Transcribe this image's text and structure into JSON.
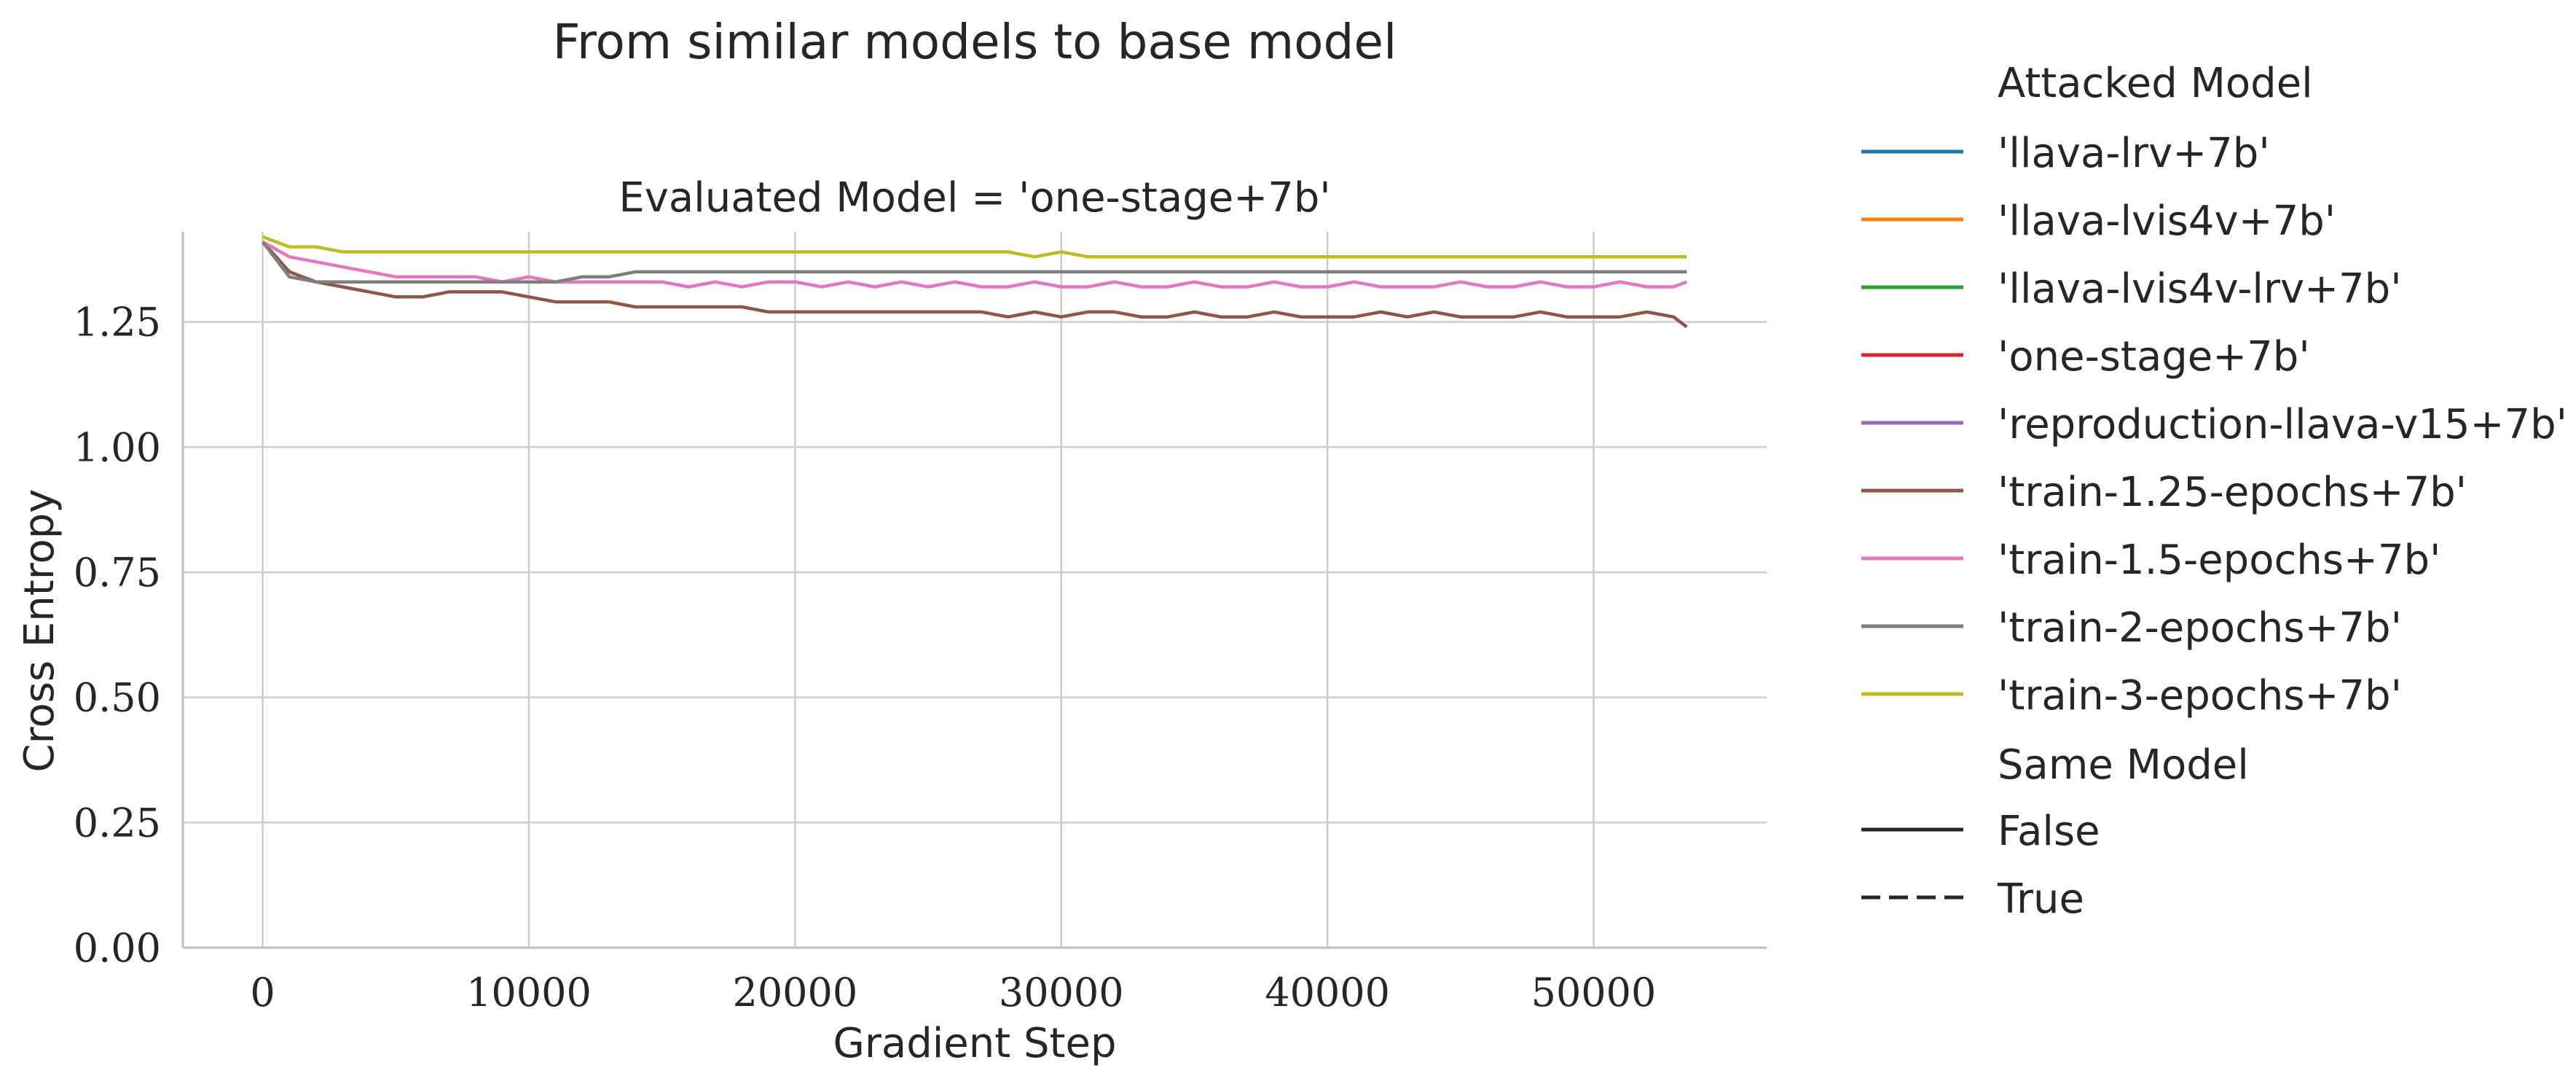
{
  "figure": {
    "suptitle": "From similar models to base model"
  },
  "chart_data": {
    "type": "line",
    "title": "Evaluated Model = 'one-stage+7b'",
    "xlabel": "Gradient Step",
    "ylabel": "Cross Entropy",
    "xlim": [
      -3000,
      56500
    ],
    "ylim": [
      0,
      1.43
    ],
    "xticks": [
      0,
      10000,
      20000,
      30000,
      40000,
      50000
    ],
    "yticks": [
      0.0,
      0.25,
      0.5,
      0.75,
      1.0,
      1.25
    ],
    "xtick_labels": [
      "0",
      "10000",
      "20000",
      "30000",
      "40000",
      "50000"
    ],
    "ytick_labels": [
      "0.00",
      "0.25",
      "0.50",
      "0.75",
      "1.00",
      "1.25"
    ],
    "grid": true,
    "legend": {
      "placement": "right-outside",
      "hue_title": "Attacked Model",
      "style_title": "Same Model",
      "style_entries": [
        {
          "label": "False",
          "dash": "solid"
        },
        {
          "label": "True",
          "dash": "dashed"
        }
      ]
    },
    "series": [
      {
        "name": "'llava-lrv+7b'",
        "color": "#1f77b4",
        "x": [],
        "y": []
      },
      {
        "name": "'llava-lvis4v+7b'",
        "color": "#ff7f0e",
        "x": [],
        "y": []
      },
      {
        "name": "'llava-lvis4v-lrv+7b'",
        "color": "#2ca02c",
        "x": [],
        "y": []
      },
      {
        "name": "'one-stage+7b'",
        "color": "#d62728",
        "x": [],
        "y": []
      },
      {
        "name": "'reproduction-llava-v15+7b'",
        "color": "#9467bd",
        "x": [],
        "y": []
      },
      {
        "name": "'train-1.25-epochs+7b'",
        "color": "#8c564b",
        "x": [
          0,
          1000,
          2000,
          3000,
          4000,
          5000,
          6000,
          7000,
          8000,
          9000,
          10000,
          11000,
          12000,
          13000,
          14000,
          15000,
          16000,
          17000,
          18000,
          19000,
          20000,
          21000,
          22000,
          23000,
          24000,
          25000,
          26000,
          27000,
          28000,
          29000,
          30000,
          31000,
          32000,
          33000,
          34000,
          35000,
          36000,
          37000,
          38000,
          39000,
          40000,
          41000,
          42000,
          43000,
          44000,
          45000,
          46000,
          47000,
          48000,
          49000,
          50000,
          51000,
          52000,
          53000,
          53500
        ],
        "y": [
          1.41,
          1.35,
          1.33,
          1.32,
          1.31,
          1.3,
          1.3,
          1.31,
          1.31,
          1.31,
          1.3,
          1.29,
          1.29,
          1.29,
          1.28,
          1.28,
          1.28,
          1.28,
          1.28,
          1.27,
          1.27,
          1.27,
          1.27,
          1.27,
          1.27,
          1.27,
          1.27,
          1.27,
          1.26,
          1.27,
          1.26,
          1.27,
          1.27,
          1.26,
          1.26,
          1.27,
          1.26,
          1.26,
          1.27,
          1.26,
          1.26,
          1.26,
          1.27,
          1.26,
          1.27,
          1.26,
          1.26,
          1.26,
          1.27,
          1.26,
          1.26,
          1.26,
          1.27,
          1.26,
          1.24
        ]
      },
      {
        "name": "'train-1.5-epochs+7b'",
        "color": "#e377c2",
        "x": [
          0,
          1000,
          2000,
          3000,
          4000,
          5000,
          6000,
          7000,
          8000,
          9000,
          10000,
          11000,
          12000,
          13000,
          14000,
          15000,
          16000,
          17000,
          18000,
          19000,
          20000,
          21000,
          22000,
          23000,
          24000,
          25000,
          26000,
          27000,
          28000,
          29000,
          30000,
          31000,
          32000,
          33000,
          34000,
          35000,
          36000,
          37000,
          38000,
          39000,
          40000,
          41000,
          42000,
          43000,
          44000,
          45000,
          46000,
          47000,
          48000,
          49000,
          50000,
          51000,
          52000,
          53000,
          53500
        ],
        "y": [
          1.41,
          1.38,
          1.37,
          1.36,
          1.35,
          1.34,
          1.34,
          1.34,
          1.34,
          1.33,
          1.34,
          1.33,
          1.33,
          1.33,
          1.33,
          1.33,
          1.32,
          1.33,
          1.32,
          1.33,
          1.33,
          1.32,
          1.33,
          1.32,
          1.33,
          1.32,
          1.33,
          1.32,
          1.32,
          1.33,
          1.32,
          1.32,
          1.33,
          1.32,
          1.32,
          1.33,
          1.32,
          1.32,
          1.33,
          1.32,
          1.32,
          1.33,
          1.32,
          1.32,
          1.32,
          1.33,
          1.32,
          1.32,
          1.33,
          1.32,
          1.32,
          1.33,
          1.32,
          1.32,
          1.33
        ]
      },
      {
        "name": "'train-2-epochs+7b'",
        "color": "#7f7f7f",
        "x": [
          0,
          1000,
          2000,
          3000,
          4000,
          5000,
          6000,
          7000,
          8000,
          9000,
          10000,
          11000,
          12000,
          13000,
          14000,
          15000,
          16000,
          17000,
          18000,
          19000,
          20000,
          21000,
          22000,
          23000,
          24000,
          25000,
          26000,
          27000,
          28000,
          29000,
          30000,
          31000,
          32000,
          33000,
          34000,
          35000,
          36000,
          37000,
          38000,
          39000,
          40000,
          41000,
          42000,
          43000,
          44000,
          45000,
          46000,
          47000,
          48000,
          49000,
          50000,
          51000,
          52000,
          53000,
          53500
        ],
        "y": [
          1.41,
          1.34,
          1.33,
          1.33,
          1.33,
          1.33,
          1.33,
          1.33,
          1.33,
          1.33,
          1.33,
          1.33,
          1.34,
          1.34,
          1.35,
          1.35,
          1.35,
          1.35,
          1.35,
          1.35,
          1.35,
          1.35,
          1.35,
          1.35,
          1.35,
          1.35,
          1.35,
          1.35,
          1.35,
          1.35,
          1.35,
          1.35,
          1.35,
          1.35,
          1.35,
          1.35,
          1.35,
          1.35,
          1.35,
          1.35,
          1.35,
          1.35,
          1.35,
          1.35,
          1.35,
          1.35,
          1.35,
          1.35,
          1.35,
          1.35,
          1.35,
          1.35,
          1.35,
          1.35,
          1.35
        ]
      },
      {
        "name": "'train-3-epochs+7b'",
        "color": "#bcbd22",
        "x": [
          0,
          1000,
          2000,
          3000,
          4000,
          5000,
          6000,
          7000,
          8000,
          9000,
          10000,
          11000,
          12000,
          13000,
          14000,
          15000,
          16000,
          17000,
          18000,
          19000,
          20000,
          21000,
          22000,
          23000,
          24000,
          25000,
          26000,
          27000,
          28000,
          29000,
          30000,
          31000,
          32000,
          33000,
          34000,
          35000,
          36000,
          37000,
          38000,
          39000,
          40000,
          41000,
          42000,
          43000,
          44000,
          45000,
          46000,
          47000,
          48000,
          49000,
          50000,
          51000,
          52000,
          53000,
          53500
        ],
        "y": [
          1.42,
          1.4,
          1.4,
          1.39,
          1.39,
          1.39,
          1.39,
          1.39,
          1.39,
          1.39,
          1.39,
          1.39,
          1.39,
          1.39,
          1.39,
          1.39,
          1.39,
          1.39,
          1.39,
          1.39,
          1.39,
          1.39,
          1.39,
          1.39,
          1.39,
          1.39,
          1.39,
          1.39,
          1.39,
          1.38,
          1.39,
          1.38,
          1.38,
          1.38,
          1.38,
          1.38,
          1.38,
          1.38,
          1.38,
          1.38,
          1.38,
          1.38,
          1.38,
          1.38,
          1.38,
          1.38,
          1.38,
          1.38,
          1.38,
          1.38,
          1.38,
          1.38,
          1.38,
          1.38,
          1.38
        ]
      }
    ]
  }
}
